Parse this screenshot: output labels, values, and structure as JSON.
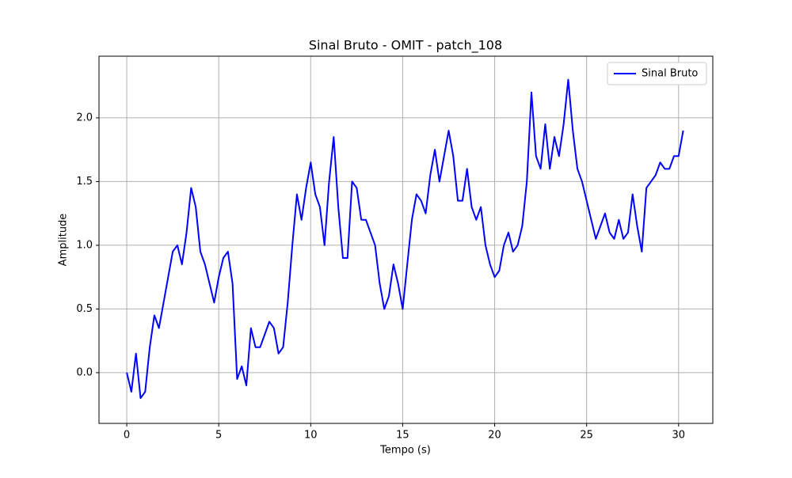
{
  "chart_data": {
    "type": "line",
    "title": "Sinal Bruto - OMIT - patch_108",
    "x_label": "Tempo (s)",
    "y_label": "Amplitude",
    "x": [
      0,
      0.25,
      0.5,
      0.75,
      1,
      1.25,
      1.5,
      1.75,
      2,
      2.25,
      2.5,
      2.75,
      3,
      3.25,
      3.5,
      3.75,
      4,
      4.25,
      4.5,
      4.75,
      5,
      5.25,
      5.5,
      5.75,
      6,
      6.25,
      6.5,
      6.75,
      7,
      7.25,
      7.5,
      7.75,
      8,
      8.25,
      8.5,
      8.75,
      9,
      9.25,
      9.5,
      9.75,
      10,
      10.25,
      10.5,
      10.75,
      11,
      11.25,
      11.5,
      11.75,
      12,
      12.25,
      12.5,
      12.75,
      13,
      13.25,
      13.5,
      13.75,
      14,
      14.25,
      14.5,
      14.75,
      15,
      15.25,
      15.5,
      15.75,
      16,
      16.25,
      16.5,
      16.75,
      17,
      17.25,
      17.5,
      17.75,
      18,
      18.25,
      18.5,
      18.75,
      19,
      19.25,
      19.5,
      19.75,
      20,
      20.25,
      20.5,
      20.75,
      21,
      21.25,
      21.5,
      21.75,
      22,
      22.25,
      22.5,
      22.75,
      23,
      23.25,
      23.5,
      23.75,
      24,
      24.25,
      24.5,
      24.75,
      25,
      25.25,
      25.5,
      25.75,
      26,
      26.25,
      26.5,
      26.75,
      27,
      27.25,
      27.5,
      27.75,
      28,
      28.25,
      28.5,
      28.75,
      29,
      29.25,
      29.5,
      29.75,
      30,
      30.25
    ],
    "series": [
      {
        "name": "Sinal Bruto",
        "color": "#0000ff",
        "values": [
          0,
          -0.15,
          0.15,
          -0.2,
          -0.15,
          0.2,
          0.45,
          0.35,
          0.55,
          0.75,
          0.95,
          1,
          0.85,
          1.1,
          1.45,
          1.3,
          0.95,
          0.85,
          0.7,
          0.55,
          0.75,
          0.9,
          0.95,
          0.7,
          -0.05,
          0.05,
          -0.1,
          0.35,
          0.2,
          0.2,
          0.3,
          0.4,
          0.35,
          0.15,
          0.2,
          0.55,
          1,
          1.4,
          1.2,
          1.45,
          1.65,
          1.4,
          1.3,
          1,
          1.5,
          1.85,
          1.3,
          0.9,
          0.9,
          1.5,
          1.45,
          1.2,
          1.2,
          1.1,
          1,
          0.7,
          0.5,
          0.6,
          0.85,
          0.7,
          0.5,
          0.85,
          1.2,
          1.4,
          1.35,
          1.25,
          1.55,
          1.75,
          1.5,
          1.7,
          1.9,
          1.7,
          1.35,
          1.35,
          1.6,
          1.3,
          1.2,
          1.3,
          1,
          0.85,
          0.75,
          0.8,
          1,
          1.1,
          0.95,
          1,
          1.15,
          1.5,
          2.2,
          1.7,
          1.6,
          1.95,
          1.6,
          1.85,
          1.7,
          1.95,
          2.3,
          1.9,
          1.6,
          1.5,
          1.35,
          1.2,
          1.05,
          1.15,
          1.25,
          1.1,
          1.05,
          1.2,
          1.05,
          1.1,
          1.4,
          1.15,
          0.95,
          1.45,
          1.5,
          1.55,
          1.65,
          1.6,
          1.6,
          1.7,
          1.7,
          1.9
        ]
      }
    ],
    "xlim": [
      -1.51,
      31.86
    ],
    "xticks": [
      0,
      5,
      10,
      15,
      20,
      25,
      30
    ],
    "ylim": [
      -0.398,
      2.484
    ],
    "yticks": [
      {
        "value": 0,
        "label": "0.0"
      },
      0.5,
      {
        "value": 1,
        "label": "1.0"
      },
      1.5,
      {
        "value": 2,
        "label": "2.0"
      }
    ],
    "grid": true,
    "legend": "upper right"
  }
}
